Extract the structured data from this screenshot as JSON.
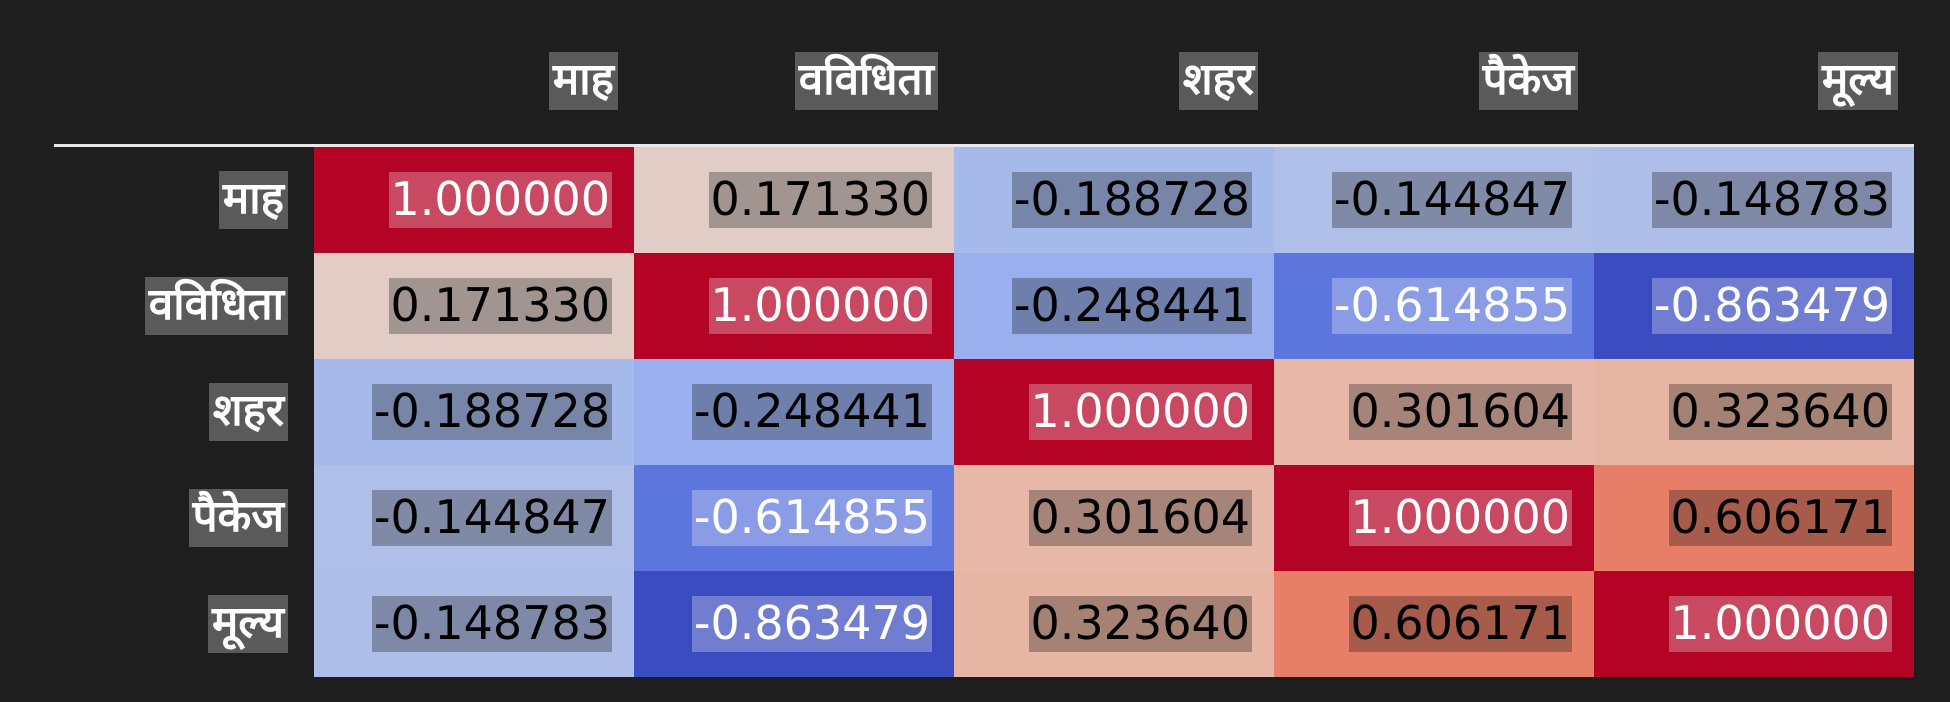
{
  "chart_data": {
    "type": "heatmap",
    "columns": [
      "माह",
      "वविधिता",
      "शहर",
      "पैकेज",
      "मूल्य"
    ],
    "rows": [
      "माह",
      "वविधिता",
      "शहर",
      "पैकेज",
      "मूल्य"
    ],
    "values": [
      [
        1.0,
        0.17133,
        -0.188728,
        -0.144847,
        -0.148783
      ],
      [
        0.17133,
        1.0,
        -0.248441,
        -0.614855,
        -0.863479
      ],
      [
        -0.188728,
        -0.248441,
        1.0,
        0.301604,
        0.32364
      ],
      [
        -0.144847,
        -0.614855,
        0.301604,
        1.0,
        0.606171
      ],
      [
        -0.148783,
        -0.863479,
        0.32364,
        0.606171,
        1.0
      ]
    ],
    "value_labels": [
      [
        "1.000000",
        "0.171330",
        "-0.188728",
        "-0.144847",
        "-0.148783"
      ],
      [
        "0.171330",
        "1.000000",
        "-0.248441",
        "-0.614855",
        "-0.863479"
      ],
      [
        "-0.188728",
        "-0.248441",
        "1.000000",
        "0.301604",
        "0.323640"
      ],
      [
        "-0.144847",
        "-0.614855",
        "0.301604",
        "1.000000",
        "0.606171"
      ],
      [
        "-0.148783",
        "-0.863479",
        "0.323640",
        "0.606171",
        "1.000000"
      ]
    ],
    "colormap": "coolwarm",
    "value_range": [
      -0.863479,
      1.0
    ],
    "colors": {
      "min": "#3b4cc0",
      "mid": "#dddddd",
      "max": "#b40426",
      "background": "#1e1e1e",
      "header_rule": "#e8e8e8",
      "label_box": "#5a5a5a"
    }
  }
}
